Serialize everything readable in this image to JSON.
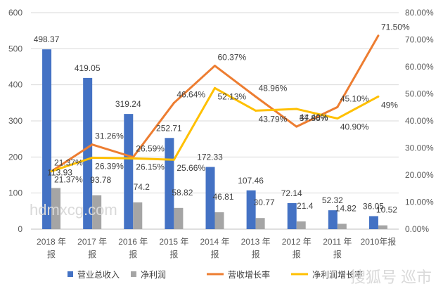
{
  "chart_data": {
    "type": "bar",
    "categories": [
      "2018 年报",
      "2017 年报",
      "2016 年报",
      "2015 年报",
      "2014 年报",
      "2013 年报",
      "2012 年报",
      "2011 年报",
      "2010年报"
    ],
    "series": [
      {
        "name": "营业总收入",
        "type": "bar",
        "axis": "left",
        "color": "#4472C4",
        "values": [
          498.37,
          419.05,
          319.24,
          252.71,
          172.33,
          107.46,
          72.14,
          52.32,
          36.05
        ],
        "labels": [
          "498.37",
          "419.05",
          "319.24",
          "252.71",
          "172.33",
          "107.46",
          "72.14",
          "52.32",
          "36.05"
        ]
      },
      {
        "name": "净利润",
        "type": "bar",
        "axis": "left",
        "color": "#A5A5A5",
        "values": [
          113.93,
          93.78,
          74.2,
          58.82,
          46.81,
          30.77,
          21.4,
          14.82,
          10.52
        ],
        "labels": [
          "113.93",
          "93.78",
          "74.2",
          "58.82",
          "46.81",
          "30.77",
          "21.4",
          "14.82",
          "10.52"
        ]
      },
      {
        "name": "营收增长率",
        "type": "line",
        "axis": "right",
        "color": "#ED7D31",
        "values": [
          21.37,
          31.26,
          26.59,
          46.64,
          60.37,
          48.96,
          37.88,
          45.1,
          71.5
        ],
        "labels": [
          "21.37%",
          "31.26%",
          "26.59%",
          "46.64%",
          "60.37%",
          "48.96%",
          "37.88%",
          "45.10%",
          "71.50%"
        ]
      },
      {
        "name": "净利润增长率",
        "type": "line",
        "axis": "right",
        "color": "#FFC000",
        "values": [
          21.37,
          26.39,
          26.15,
          25.66,
          52.13,
          43.79,
          44.4,
          40.9,
          49.0
        ],
        "labels": [
          "21.37%",
          "26.39%",
          "26.15%",
          "25.66%",
          "52.13%",
          "43.79%",
          "44.40%",
          "40.90%",
          "49%"
        ]
      }
    ],
    "y_left": {
      "min": 0,
      "max": 600,
      "ticks": [
        "0",
        "100",
        "200",
        "300",
        "400",
        "500",
        "600"
      ]
    },
    "y_right": {
      "min": 0,
      "max": 80,
      "ticks": [
        "0.00%",
        "10.00%",
        "20.00%",
        "30.00%",
        "40.00%",
        "50.00%",
        "60.00%",
        "70.00%",
        "80.00%"
      ]
    },
    "grid": true,
    "legend": "bottom"
  },
  "watermarks": [
    "hdmxcg.com",
    "搜狐号 巡市"
  ]
}
